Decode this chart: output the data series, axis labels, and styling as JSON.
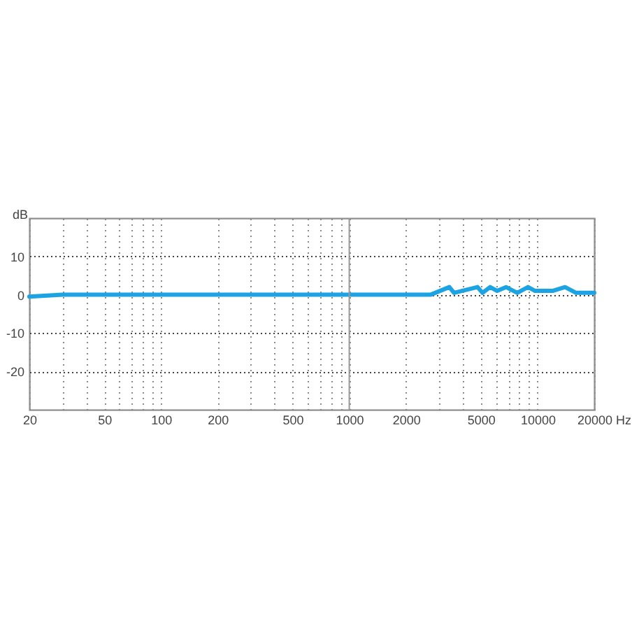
{
  "chart_data": {
    "type": "line",
    "xlabel": "Hz",
    "ylabel": "dB",
    "log": "x",
    "grid": true,
    "x": [
      20,
      30,
      2700,
      3400,
      3600,
      4800,
      5100,
      5600,
      6100,
      6800,
      7800,
      8900,
      9700,
      12000,
      14000,
      16000,
      20000
    ],
    "series": [
      {
        "color": "#1ba3e3",
        "values": [
          -0.5,
          0,
          0,
          2,
          0.5,
          2,
          0.5,
          2,
          1,
          2,
          0.5,
          2,
          1,
          1,
          2,
          0.5,
          0.5
        ]
      }
    ],
    "xlim": [
      20,
      20000
    ],
    "ylim": [
      -30,
      20
    ],
    "xticks": [
      20,
      {
        "value": 30,
        "label": null
      },
      {
        "value": 40,
        "label": null
      },
      50,
      {
        "value": 60,
        "label": null
      },
      {
        "value": 70,
        "label": null
      },
      {
        "value": 80,
        "label": null
      },
      {
        "value": 90,
        "label": null
      },
      100,
      200,
      {
        "value": 300,
        "label": null
      },
      {
        "value": 400,
        "label": null
      },
      500,
      {
        "value": 600,
        "label": null
      },
      {
        "value": 700,
        "label": null
      },
      {
        "value": 800,
        "label": null
      },
      {
        "value": 900,
        "label": null
      },
      1000,
      2000,
      {
        "value": 3000,
        "label": null
      },
      {
        "value": 4000,
        "label": null
      },
      5000,
      {
        "value": 6000,
        "label": null
      },
      {
        "value": 7000,
        "label": null
      },
      {
        "value": 8000,
        "label": null
      },
      {
        "value": 9000,
        "label": null
      },
      10000,
      20000
    ],
    "yticks": [
      10,
      0,
      -10,
      -20
    ],
    "ref_lines": [
      {
        "axis": "x",
        "value": 1000,
        "color": "#999999",
        "line_style": "solid"
      }
    ]
  }
}
